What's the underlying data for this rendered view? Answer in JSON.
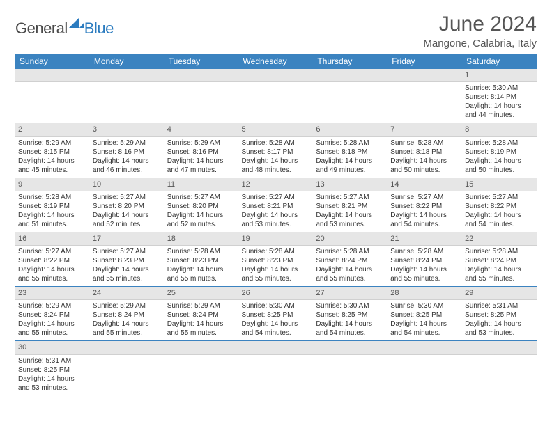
{
  "logo": {
    "part1": "General",
    "part2": "Blue"
  },
  "title": "June 2024",
  "location": "Mangone, Calabria, Italy",
  "colors": {
    "header_bg": "#3b83c0",
    "header_text": "#ffffff",
    "daynum_bg": "#e6e6e6",
    "row_border": "#3b83c0",
    "logo_gray": "#4a4a4a",
    "logo_blue": "#2b7bbf"
  },
  "weekdays": [
    "Sunday",
    "Monday",
    "Tuesday",
    "Wednesday",
    "Thursday",
    "Friday",
    "Saturday"
  ],
  "weeks": [
    [
      null,
      null,
      null,
      null,
      null,
      null,
      {
        "n": "1",
        "sunrise": "Sunrise: 5:30 AM",
        "sunset": "Sunset: 8:14 PM",
        "daylight": "Daylight: 14 hours and 44 minutes."
      }
    ],
    [
      {
        "n": "2",
        "sunrise": "Sunrise: 5:29 AM",
        "sunset": "Sunset: 8:15 PM",
        "daylight": "Daylight: 14 hours and 45 minutes."
      },
      {
        "n": "3",
        "sunrise": "Sunrise: 5:29 AM",
        "sunset": "Sunset: 8:16 PM",
        "daylight": "Daylight: 14 hours and 46 minutes."
      },
      {
        "n": "4",
        "sunrise": "Sunrise: 5:29 AM",
        "sunset": "Sunset: 8:16 PM",
        "daylight": "Daylight: 14 hours and 47 minutes."
      },
      {
        "n": "5",
        "sunrise": "Sunrise: 5:28 AM",
        "sunset": "Sunset: 8:17 PM",
        "daylight": "Daylight: 14 hours and 48 minutes."
      },
      {
        "n": "6",
        "sunrise": "Sunrise: 5:28 AM",
        "sunset": "Sunset: 8:18 PM",
        "daylight": "Daylight: 14 hours and 49 minutes."
      },
      {
        "n": "7",
        "sunrise": "Sunrise: 5:28 AM",
        "sunset": "Sunset: 8:18 PM",
        "daylight": "Daylight: 14 hours and 50 minutes."
      },
      {
        "n": "8",
        "sunrise": "Sunrise: 5:28 AM",
        "sunset": "Sunset: 8:19 PM",
        "daylight": "Daylight: 14 hours and 50 minutes."
      }
    ],
    [
      {
        "n": "9",
        "sunrise": "Sunrise: 5:28 AM",
        "sunset": "Sunset: 8:19 PM",
        "daylight": "Daylight: 14 hours and 51 minutes."
      },
      {
        "n": "10",
        "sunrise": "Sunrise: 5:27 AM",
        "sunset": "Sunset: 8:20 PM",
        "daylight": "Daylight: 14 hours and 52 minutes."
      },
      {
        "n": "11",
        "sunrise": "Sunrise: 5:27 AM",
        "sunset": "Sunset: 8:20 PM",
        "daylight": "Daylight: 14 hours and 52 minutes."
      },
      {
        "n": "12",
        "sunrise": "Sunrise: 5:27 AM",
        "sunset": "Sunset: 8:21 PM",
        "daylight": "Daylight: 14 hours and 53 minutes."
      },
      {
        "n": "13",
        "sunrise": "Sunrise: 5:27 AM",
        "sunset": "Sunset: 8:21 PM",
        "daylight": "Daylight: 14 hours and 53 minutes."
      },
      {
        "n": "14",
        "sunrise": "Sunrise: 5:27 AM",
        "sunset": "Sunset: 8:22 PM",
        "daylight": "Daylight: 14 hours and 54 minutes."
      },
      {
        "n": "15",
        "sunrise": "Sunrise: 5:27 AM",
        "sunset": "Sunset: 8:22 PM",
        "daylight": "Daylight: 14 hours and 54 minutes."
      }
    ],
    [
      {
        "n": "16",
        "sunrise": "Sunrise: 5:27 AM",
        "sunset": "Sunset: 8:22 PM",
        "daylight": "Daylight: 14 hours and 55 minutes."
      },
      {
        "n": "17",
        "sunrise": "Sunrise: 5:27 AM",
        "sunset": "Sunset: 8:23 PM",
        "daylight": "Daylight: 14 hours and 55 minutes."
      },
      {
        "n": "18",
        "sunrise": "Sunrise: 5:28 AM",
        "sunset": "Sunset: 8:23 PM",
        "daylight": "Daylight: 14 hours and 55 minutes."
      },
      {
        "n": "19",
        "sunrise": "Sunrise: 5:28 AM",
        "sunset": "Sunset: 8:23 PM",
        "daylight": "Daylight: 14 hours and 55 minutes."
      },
      {
        "n": "20",
        "sunrise": "Sunrise: 5:28 AM",
        "sunset": "Sunset: 8:24 PM",
        "daylight": "Daylight: 14 hours and 55 minutes."
      },
      {
        "n": "21",
        "sunrise": "Sunrise: 5:28 AM",
        "sunset": "Sunset: 8:24 PM",
        "daylight": "Daylight: 14 hours and 55 minutes."
      },
      {
        "n": "22",
        "sunrise": "Sunrise: 5:28 AM",
        "sunset": "Sunset: 8:24 PM",
        "daylight": "Daylight: 14 hours and 55 minutes."
      }
    ],
    [
      {
        "n": "23",
        "sunrise": "Sunrise: 5:29 AM",
        "sunset": "Sunset: 8:24 PM",
        "daylight": "Daylight: 14 hours and 55 minutes."
      },
      {
        "n": "24",
        "sunrise": "Sunrise: 5:29 AM",
        "sunset": "Sunset: 8:24 PM",
        "daylight": "Daylight: 14 hours and 55 minutes."
      },
      {
        "n": "25",
        "sunrise": "Sunrise: 5:29 AM",
        "sunset": "Sunset: 8:24 PM",
        "daylight": "Daylight: 14 hours and 55 minutes."
      },
      {
        "n": "26",
        "sunrise": "Sunrise: 5:30 AM",
        "sunset": "Sunset: 8:25 PM",
        "daylight": "Daylight: 14 hours and 54 minutes."
      },
      {
        "n": "27",
        "sunrise": "Sunrise: 5:30 AM",
        "sunset": "Sunset: 8:25 PM",
        "daylight": "Daylight: 14 hours and 54 minutes."
      },
      {
        "n": "28",
        "sunrise": "Sunrise: 5:30 AM",
        "sunset": "Sunset: 8:25 PM",
        "daylight": "Daylight: 14 hours and 54 minutes."
      },
      {
        "n": "29",
        "sunrise": "Sunrise: 5:31 AM",
        "sunset": "Sunset: 8:25 PM",
        "daylight": "Daylight: 14 hours and 53 minutes."
      }
    ],
    [
      {
        "n": "30",
        "sunrise": "Sunrise: 5:31 AM",
        "sunset": "Sunset: 8:25 PM",
        "daylight": "Daylight: 14 hours and 53 minutes."
      },
      null,
      null,
      null,
      null,
      null,
      null
    ]
  ]
}
